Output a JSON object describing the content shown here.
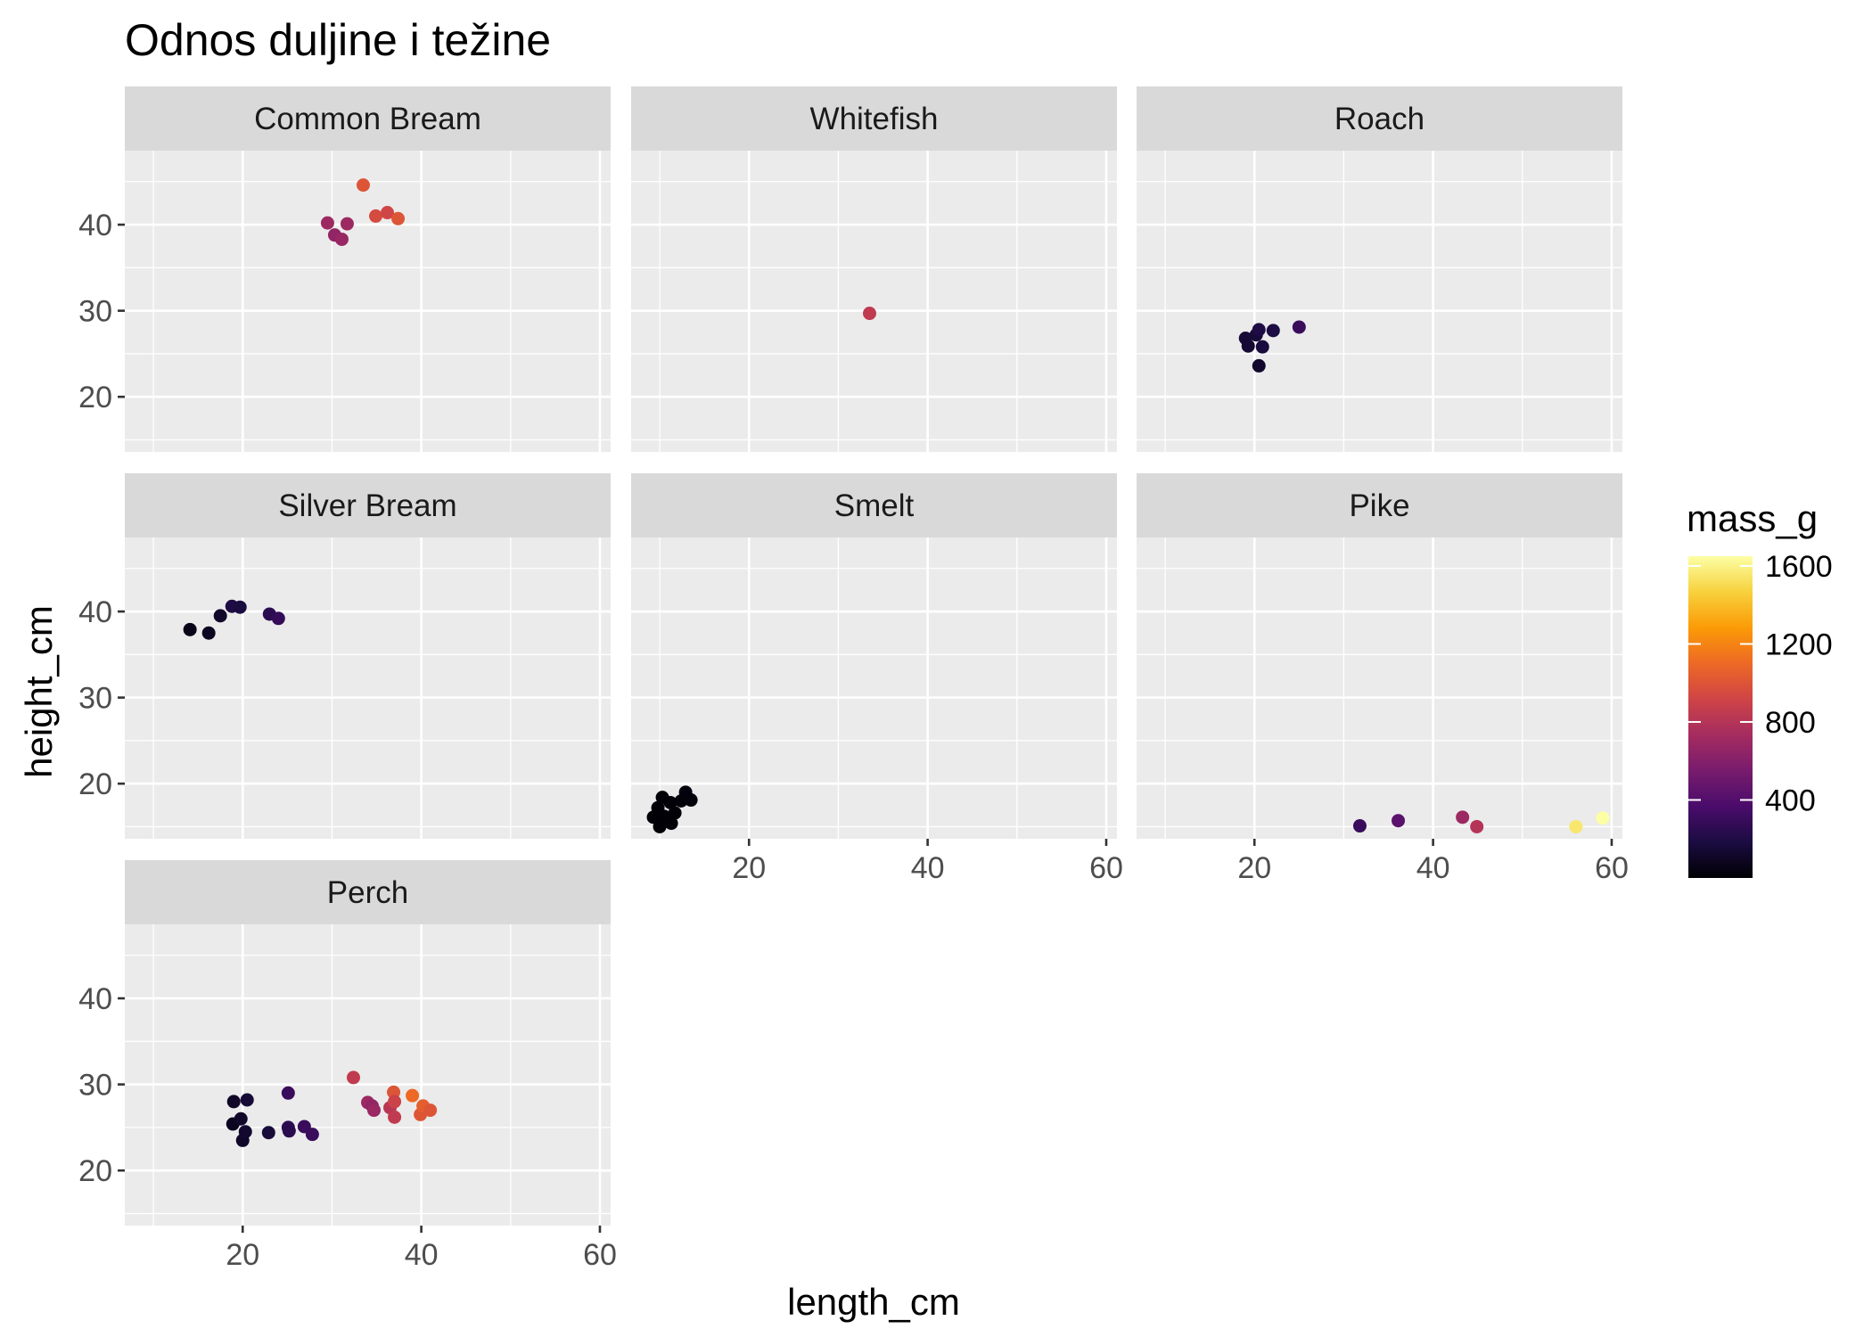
{
  "chart_data": {
    "type": "scatter",
    "title": "Odnos duljine i težine",
    "xlabel": "length_cm",
    "ylabel": "height_cm",
    "xlim": [
      6.8,
      61.2
    ],
    "ylim": [
      13.6,
      48.6
    ],
    "x_ticks": [
      20,
      40,
      60
    ],
    "y_ticks": [
      20,
      30,
      40
    ],
    "grid": true,
    "facet_layout": "3 columns",
    "color_variable": "mass_g",
    "color_scale": {
      "name": "inferno",
      "range": [
        0,
        1650
      ],
      "ticks": [
        400,
        800,
        1200,
        1600
      ],
      "stops": [
        "#000004",
        "#1b0c41",
        "#4a0c6b",
        "#781c6d",
        "#a52c60",
        "#cf4446",
        "#ed6925",
        "#fb9b06",
        "#f7d13d",
        "#fcffa4"
      ]
    },
    "legend_placement": "right",
    "facets": [
      {
        "name": "Common Bream",
        "points": [
          {
            "x": 29.5,
            "y": 40.2,
            "mass": 700
          },
          {
            "x": 30.3,
            "y": 38.8,
            "mass": 650
          },
          {
            "x": 31.1,
            "y": 38.3,
            "mass": 680
          },
          {
            "x": 31.7,
            "y": 40.1,
            "mass": 700
          },
          {
            "x": 33.5,
            "y": 44.6,
            "mass": 1000
          },
          {
            "x": 34.9,
            "y": 41.0,
            "mass": 950
          },
          {
            "x": 36.2,
            "y": 41.4,
            "mass": 920
          },
          {
            "x": 37.4,
            "y": 40.7,
            "mass": 1000
          }
        ]
      },
      {
        "name": "Whitefish",
        "points": [
          {
            "x": 33.5,
            "y": 29.7,
            "mass": 850
          }
        ]
      },
      {
        "name": "Roach",
        "points": [
          {
            "x": 19.0,
            "y": 26.8,
            "mass": 150
          },
          {
            "x": 19.3,
            "y": 25.9,
            "mass": 140
          },
          {
            "x": 20.2,
            "y": 27.2,
            "mass": 150
          },
          {
            "x": 20.5,
            "y": 27.8,
            "mass": 200
          },
          {
            "x": 20.5,
            "y": 23.6,
            "mass": 120
          },
          {
            "x": 20.9,
            "y": 25.8,
            "mass": 170
          },
          {
            "x": 22.1,
            "y": 27.7,
            "mass": 190
          },
          {
            "x": 25.0,
            "y": 28.1,
            "mass": 300
          }
        ]
      },
      {
        "name": "Silver Bream",
        "points": [
          {
            "x": 14.1,
            "y": 37.9,
            "mass": 60
          },
          {
            "x": 16.2,
            "y": 37.5,
            "mass": 90
          },
          {
            "x": 17.5,
            "y": 39.5,
            "mass": 120
          },
          {
            "x": 18.8,
            "y": 40.6,
            "mass": 200
          },
          {
            "x": 19.7,
            "y": 40.5,
            "mass": 180
          },
          {
            "x": 23.0,
            "y": 39.7,
            "mass": 250
          },
          {
            "x": 24.0,
            "y": 39.2,
            "mass": 280
          }
        ]
      },
      {
        "name": "Smelt",
        "points": [
          {
            "x": 9.3,
            "y": 16.1,
            "mass": 7
          },
          {
            "x": 9.8,
            "y": 17.2,
            "mass": 8
          },
          {
            "x": 10.0,
            "y": 15.0,
            "mass": 8
          },
          {
            "x": 10.3,
            "y": 18.4,
            "mass": 10
          },
          {
            "x": 10.5,
            "y": 16.2,
            "mass": 9
          },
          {
            "x": 10.9,
            "y": 15.9,
            "mass": 10
          },
          {
            "x": 11.2,
            "y": 17.8,
            "mass": 10
          },
          {
            "x": 11.3,
            "y": 15.4,
            "mass": 12
          },
          {
            "x": 11.7,
            "y": 16.6,
            "mass": 13
          },
          {
            "x": 12.4,
            "y": 18.0,
            "mass": 12
          },
          {
            "x": 12.9,
            "y": 19.0,
            "mass": 20
          },
          {
            "x": 13.5,
            "y": 18.1,
            "mass": 19
          }
        ]
      },
      {
        "name": "Pike",
        "points": [
          {
            "x": 31.8,
            "y": 15.1,
            "mass": 300
          },
          {
            "x": 36.1,
            "y": 15.7,
            "mass": 430
          },
          {
            "x": 43.3,
            "y": 16.1,
            "mass": 700
          },
          {
            "x": 44.9,
            "y": 15.0,
            "mass": 800
          },
          {
            "x": 56.0,
            "y": 15.0,
            "mass": 1550
          },
          {
            "x": 59.0,
            "y": 16.0,
            "mass": 1650
          }
        ]
      },
      {
        "name": "Perch",
        "points": [
          {
            "x": 18.9,
            "y": 25.4,
            "mass": 80
          },
          {
            "x": 19.0,
            "y": 28.0,
            "mass": 100
          },
          {
            "x": 19.8,
            "y": 26.0,
            "mass": 110
          },
          {
            "x": 20.0,
            "y": 23.5,
            "mass": 110
          },
          {
            "x": 20.3,
            "y": 24.5,
            "mass": 130
          },
          {
            "x": 20.5,
            "y": 28.2,
            "mass": 150
          },
          {
            "x": 22.9,
            "y": 24.4,
            "mass": 160
          },
          {
            "x": 25.1,
            "y": 29.0,
            "mass": 300
          },
          {
            "x": 25.1,
            "y": 25.0,
            "mass": 250
          },
          {
            "x": 25.2,
            "y": 24.6,
            "mass": 240
          },
          {
            "x": 26.9,
            "y": 25.1,
            "mass": 300
          },
          {
            "x": 27.8,
            "y": 24.2,
            "mass": 300
          },
          {
            "x": 32.4,
            "y": 30.8,
            "mass": 850
          },
          {
            "x": 34.0,
            "y": 27.9,
            "mass": 700
          },
          {
            "x": 34.5,
            "y": 27.5,
            "mass": 650
          },
          {
            "x": 34.7,
            "y": 27.0,
            "mass": 690
          },
          {
            "x": 36.5,
            "y": 27.3,
            "mass": 820
          },
          {
            "x": 36.9,
            "y": 29.1,
            "mass": 1000
          },
          {
            "x": 37.0,
            "y": 28.0,
            "mass": 900
          },
          {
            "x": 37.0,
            "y": 26.2,
            "mass": 850
          },
          {
            "x": 39.0,
            "y": 28.7,
            "mass": 1100
          },
          {
            "x": 39.9,
            "y": 26.5,
            "mass": 1000
          },
          {
            "x": 40.2,
            "y": 27.5,
            "mass": 1050
          },
          {
            "x": 41.0,
            "y": 27.0,
            "mass": 1000
          }
        ]
      }
    ]
  }
}
